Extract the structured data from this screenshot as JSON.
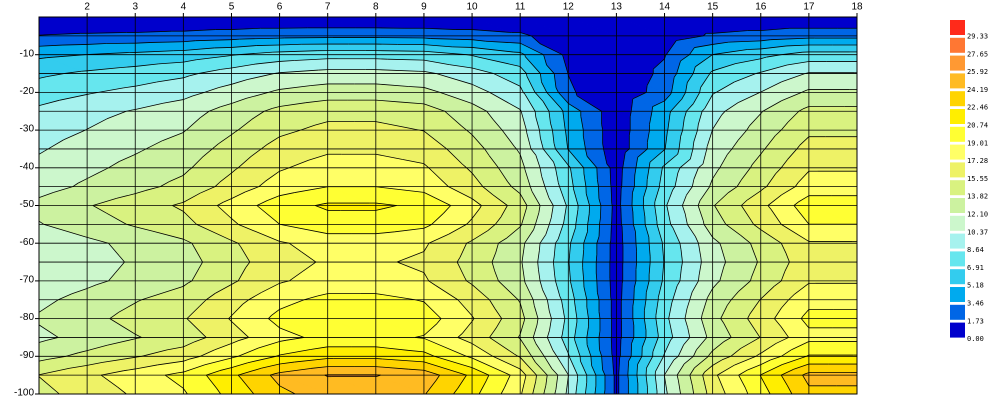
{
  "chart_data": {
    "type": "contour",
    "x": [
      1,
      2,
      3,
      4,
      5,
      6,
      7,
      8,
      9,
      10,
      11,
      12,
      13,
      14,
      15,
      16,
      17,
      18
    ],
    "y": [
      0,
      -5,
      -10,
      -15,
      -20,
      -25,
      -30,
      -35,
      -40,
      -45,
      -50,
      -55,
      -60,
      -65,
      -70,
      -75,
      -80,
      -85,
      -90,
      -95,
      -100
    ],
    "z": [
      [
        0,
        0,
        0,
        0,
        0,
        0,
        0,
        0,
        0,
        0,
        0,
        0,
        0,
        0,
        0,
        0,
        0,
        0
      ],
      [
        1.8,
        2.0,
        2.1,
        2.3,
        2.6,
        2.9,
        3,
        3,
        2.9,
        2.6,
        2.1,
        0.5,
        0.1,
        0.6,
        2.0,
        2.4,
        2.9,
        2.9
      ],
      [
        4.8,
        5.2,
        5.6,
        6.0,
        6.8,
        7.6,
        8,
        8,
        7.8,
        6.8,
        5.6,
        1.2,
        0.2,
        1.6,
        5.2,
        6.4,
        7.6,
        7.6
      ],
      [
        6.6,
        7.2,
        7.7,
        8.3,
        9.4,
        10.5,
        11,
        11,
        10.7,
        9.4,
        7.7,
        1.7,
        0.2,
        2.2,
        7.2,
        8.8,
        10.5,
        10.5
      ],
      [
        7.8,
        8.5,
        9.1,
        9.8,
        11.1,
        12.4,
        13,
        13,
        12.6,
        11.1,
        9.1,
        2.0,
        0.3,
        2.6,
        8.5,
        10.4,
        12.4,
        12.4
      ],
      [
        9.0,
        9.8,
        10.5,
        11.3,
        12.8,
        14.3,
        15,
        15,
        14.6,
        12.8,
        10.5,
        4.5,
        0.5,
        4.5,
        9.8,
        12,
        14.3,
        14.3
      ],
      [
        9.6,
        10.4,
        11.2,
        12,
        13.6,
        15.2,
        16,
        16,
        15.5,
        13.6,
        11.2,
        4.8,
        0.5,
        4.8,
        10.4,
        12.8,
        15.2,
        15.2
      ],
      [
        10.2,
        11.1,
        11.9,
        12.8,
        14.5,
        16.2,
        17,
        17,
        16.5,
        14.5,
        11.9,
        5.1,
        0.5,
        5.1,
        11.1,
        13.6,
        16.2,
        16.2
      ],
      [
        10.8,
        11.7,
        12.6,
        13.5,
        15.3,
        17.1,
        18,
        18,
        17.5,
        15.3,
        12.6,
        7.2,
        0.9,
        7.2,
        11.7,
        14.4,
        17.1,
        17.1
      ],
      [
        11.4,
        12.4,
        13.3,
        14.3,
        16.2,
        18.1,
        19,
        19,
        18.4,
        16.2,
        13.3,
        7.6,
        1.0,
        7.6,
        12.4,
        15.2,
        18.1,
        18.1
      ],
      [
        12.6,
        13.7,
        14.7,
        15.8,
        17.9,
        20,
        21,
        21,
        20.4,
        17.9,
        14.7,
        8.4,
        1.1,
        8.4,
        13.7,
        16.8,
        20,
        20
      ],
      [
        12,
        13,
        14,
        15,
        17,
        19,
        20,
        20,
        19.4,
        17,
        14,
        8,
        1,
        8,
        13,
        16,
        19,
        19
      ],
      [
        10.8,
        11.7,
        12.6,
        13.5,
        15.3,
        17.1,
        18,
        18,
        17.5,
        15.3,
        12.6,
        7.2,
        0.9,
        7.2,
        11.7,
        14.4,
        17.1,
        17.1
      ],
      [
        10.5,
        11.4,
        12.3,
        13.1,
        14.9,
        16.6,
        17.5,
        17.5,
        17,
        14.9,
        12.3,
        7,
        0.9,
        7,
        11.4,
        14,
        16.6,
        16.6
      ],
      [
        10.8,
        11.7,
        12.6,
        13.5,
        15.3,
        17.1,
        18,
        18,
        17.5,
        15.3,
        12.6,
        7.2,
        0.9,
        7.2,
        11.7,
        14.4,
        17.1,
        17.1
      ],
      [
        11.7,
        12.7,
        13.7,
        14.6,
        16.6,
        18.5,
        19.5,
        19.5,
        18.9,
        16.6,
        13.7,
        7.8,
        1,
        7.8,
        12.7,
        15.6,
        18.5,
        18.5
      ],
      [
        12.3,
        13.3,
        14.4,
        15.4,
        17.4,
        19.5,
        20.5,
        20.5,
        19.9,
        17.4,
        14.4,
        8.2,
        1,
        8.2,
        13.3,
        16.4,
        19.5,
        19.5
      ],
      [
        11.7,
        12.7,
        13.7,
        14.6,
        16.6,
        18.5,
        19.5,
        19.5,
        18.9,
        16.6,
        13.7,
        7.8,
        1,
        7.8,
        12.7,
        15.6,
        18.5,
        18.5
      ],
      [
        13.2,
        14.3,
        15.4,
        16.5,
        18.7,
        20.9,
        22,
        22,
        21.3,
        18.7,
        15.4,
        8.8,
        1.1,
        8.8,
        14.3,
        17.6,
        20.9,
        20.9
      ],
      [
        15.6,
        16.9,
        18.2,
        19.5,
        22.1,
        24.7,
        26,
        26,
        25.2,
        22.1,
        18.2,
        10.4,
        1.3,
        10.4,
        16.9,
        20.8,
        24.7,
        24.7
      ],
      [
        15,
        16.3,
        17.5,
        18.8,
        21.3,
        23.8,
        25,
        25,
        24.3,
        21.3,
        17.5,
        10,
        1.3,
        10,
        16.3,
        20,
        23.8,
        23.8
      ]
    ],
    "xlim": [
      1,
      18
    ],
    "ylim": [
      -100,
      0
    ],
    "xticks": [
      2,
      3,
      4,
      5,
      6,
      7,
      8,
      9,
      10,
      11,
      12,
      13,
      14,
      15,
      16,
      17,
      18
    ],
    "yticks": [
      -10,
      -20,
      -30,
      -40,
      -50,
      -60,
      -70,
      -80,
      -90,
      -100
    ],
    "grid": true,
    "levels": [
      {
        "value": 0,
        "label": "0.00"
      },
      1.73,
      3.46,
      5.18,
      6.91,
      8.64,
      10.37,
      {
        "value": 12.1,
        "label": "12.10"
      },
      13.82,
      15.55,
      17.28,
      19.01,
      20.74,
      22.46,
      24.19,
      25.92,
      27.65,
      29.33
    ],
    "colors": [
      "#0000cc",
      "#0066e6",
      "#00aaee",
      "#33ccee",
      "#66e6ee",
      "#a6f2ee",
      "#ccf7cc",
      "#ccf2a0",
      "#d9f280",
      "#eef266",
      "#ffff66",
      "#ffff33",
      "#ffee00",
      "#ffd400",
      "#ffbb22",
      "#ff9933",
      "#ff7733",
      "#ff2a1a"
    ]
  }
}
